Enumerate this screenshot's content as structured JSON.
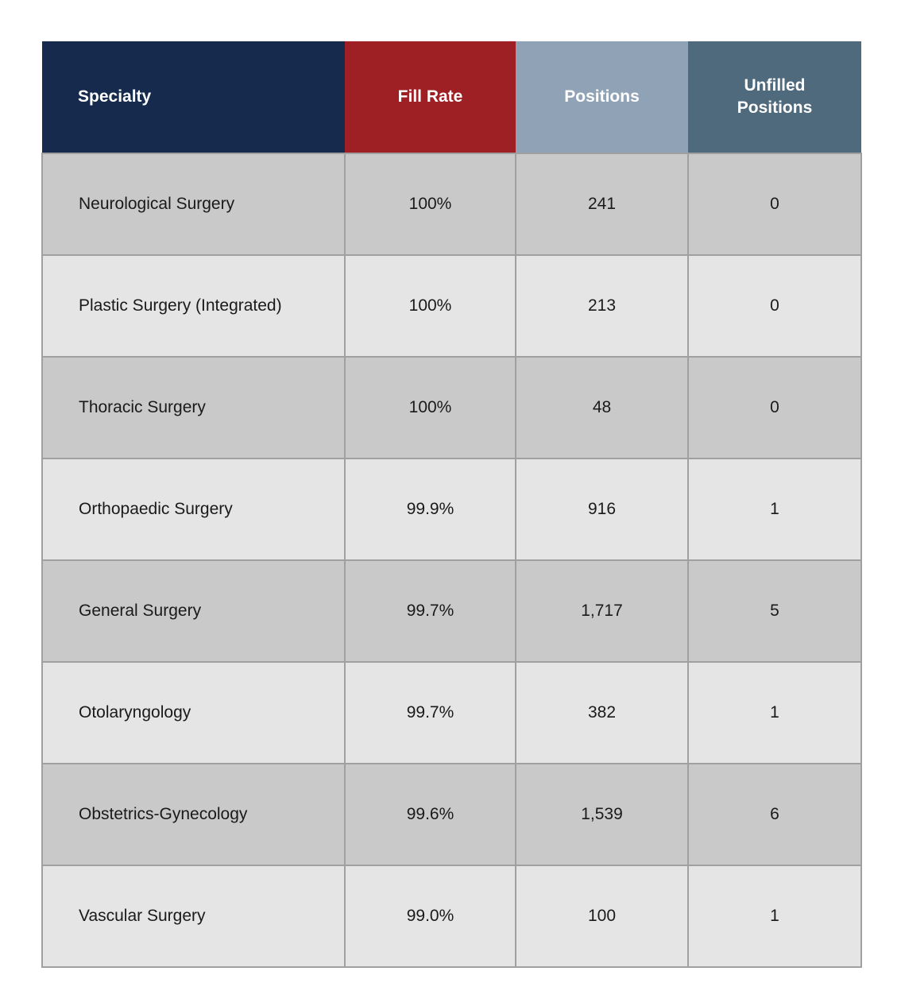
{
  "chart_data": {
    "type": "table",
    "columns": [
      "Specialty",
      "Fill Rate",
      "Positions",
      "Unfilled Positions"
    ],
    "rows": [
      {
        "specialty": "Neurological Surgery",
        "fill_rate": "100%",
        "positions": "241",
        "unfilled_positions": "0"
      },
      {
        "specialty": "Plastic Surgery (Integrated)",
        "fill_rate": "100%",
        "positions": "213",
        "unfilled_positions": "0"
      },
      {
        "specialty": "Thoracic Surgery",
        "fill_rate": "100%",
        "positions": "48",
        "unfilled_positions": "0"
      },
      {
        "specialty": "Orthopaedic Surgery",
        "fill_rate": "99.9%",
        "positions": "916",
        "unfilled_positions": "1"
      },
      {
        "specialty": "General Surgery",
        "fill_rate": "99.7%",
        "positions": "1,717",
        "unfilled_positions": "5"
      },
      {
        "specialty": "Otolaryngology",
        "fill_rate": "99.7%",
        "positions": "382",
        "unfilled_positions": "1"
      },
      {
        "specialty": "Obstetrics-Gynecology",
        "fill_rate": "99.6%",
        "positions": "1,539",
        "unfilled_positions": "6"
      },
      {
        "specialty": "Vascular Surgery",
        "fill_rate": "99.0%",
        "positions": "100",
        "unfilled_positions": "1"
      }
    ]
  },
  "colors": {
    "navy": "#152A4C",
    "red": "#9E1F24",
    "bluegray": "#90A3B6",
    "slate": "#4F6A7D",
    "row-dark": "#C9C9C9",
    "row-light": "#E5E5E5",
    "border": "#A0A0A0",
    "text": "#1A1A1A",
    "header-text": "#FFFFFF"
  }
}
